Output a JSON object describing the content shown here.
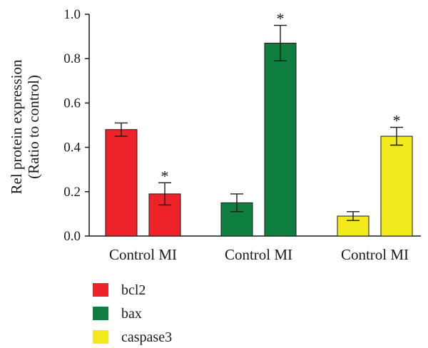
{
  "chart_data": {
    "type": "bar",
    "ylabel_lines": [
      "Rel protein expression",
      "(Ratio to control)"
    ],
    "ylim": [
      0,
      1.0
    ],
    "yticks": [
      "0.0",
      "0.2",
      "0.4",
      "0.6",
      "0.8",
      "1.0"
    ],
    "grid": false,
    "legend_position": "bottom-left",
    "groups": [
      {
        "name": "bcl2",
        "color": "#ee2229",
        "bars": [
          {
            "label": "Control",
            "value": 0.48,
            "error": 0.03,
            "star": ""
          },
          {
            "label": "MI",
            "value": 0.19,
            "error": 0.05,
            "star": "*"
          }
        ]
      },
      {
        "name": "bax",
        "color": "#0f7f3f",
        "bars": [
          {
            "label": "Control",
            "value": 0.15,
            "error": 0.04,
            "star": ""
          },
          {
            "label": "MI",
            "value": 0.87,
            "error": 0.08,
            "star": "*"
          }
        ]
      },
      {
        "name": "caspase3",
        "color": "#f2ea1d",
        "bars": [
          {
            "label": "Control",
            "value": 0.09,
            "error": 0.02,
            "star": ""
          },
          {
            "label": "MI",
            "value": 0.45,
            "error": 0.04,
            "star": "*"
          }
        ]
      }
    ]
  }
}
